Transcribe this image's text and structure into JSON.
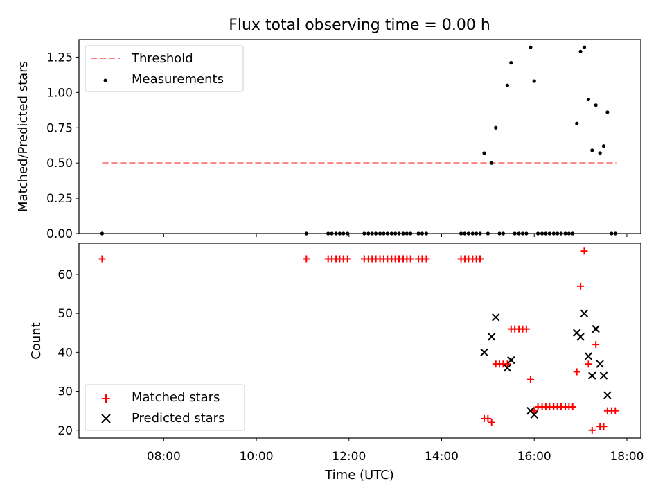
{
  "figure": {
    "title": "Flux total observing time = 0.00 h"
  },
  "chart_data": [
    {
      "type": "scatter",
      "ylabel": "Matched/Predicted stars",
      "ylim": [
        0,
        1.375
      ],
      "yticks": [
        "0.00",
        "0.25",
        "0.50",
        "0.75",
        "1.00",
        "1.25"
      ],
      "ytick_values": [
        0,
        0.25,
        0.5,
        0.75,
        1.0,
        1.25
      ],
      "legend_position": "upper-left",
      "threshold": {
        "name": "Threshold",
        "value": 0.5,
        "x_range": [
          6.67,
          17.77
        ],
        "color": "#ff7f7f"
      },
      "series": [
        {
          "name": "Measurements",
          "color": "#000000",
          "points": [
            [
              6.67,
              0.0
            ],
            [
              11.08,
              0.0
            ],
            [
              11.55,
              0.0
            ],
            [
              11.63,
              0.0
            ],
            [
              11.72,
              0.0
            ],
            [
              11.8,
              0.0
            ],
            [
              11.88,
              0.0
            ],
            [
              11.97,
              0.0
            ],
            [
              12.33,
              0.0
            ],
            [
              12.42,
              0.0
            ],
            [
              12.5,
              0.0
            ],
            [
              12.58,
              0.0
            ],
            [
              12.67,
              0.0
            ],
            [
              12.75,
              0.0
            ],
            [
              12.83,
              0.0
            ],
            [
              12.92,
              0.0
            ],
            [
              13.0,
              0.0
            ],
            [
              13.08,
              0.0
            ],
            [
              13.17,
              0.0
            ],
            [
              13.25,
              0.0
            ],
            [
              13.33,
              0.0
            ],
            [
              13.5,
              0.0
            ],
            [
              13.58,
              0.0
            ],
            [
              13.67,
              0.0
            ],
            [
              14.42,
              0.0
            ],
            [
              14.5,
              0.0
            ],
            [
              14.58,
              0.0
            ],
            [
              14.67,
              0.0
            ],
            [
              14.75,
              0.0
            ],
            [
              14.83,
              0.0
            ],
            [
              15.0,
              0.0
            ],
            [
              15.25,
              0.0
            ],
            [
              15.33,
              0.0
            ],
            [
              15.58,
              0.0
            ],
            [
              15.67,
              0.0
            ],
            [
              15.75,
              0.0
            ],
            [
              15.83,
              0.0
            ],
            [
              16.08,
              0.0
            ],
            [
              16.17,
              0.0
            ],
            [
              16.25,
              0.0
            ],
            [
              16.33,
              0.0
            ],
            [
              16.42,
              0.0
            ],
            [
              16.5,
              0.0
            ],
            [
              16.58,
              0.0
            ],
            [
              16.67,
              0.0
            ],
            [
              16.75,
              0.0
            ],
            [
              16.83,
              0.0
            ],
            [
              17.67,
              0.0
            ],
            [
              17.75,
              0.0
            ],
            [
              14.92,
              0.57
            ],
            [
              15.08,
              0.5
            ],
            [
              15.17,
              0.75
            ],
            [
              15.42,
              1.05
            ],
            [
              15.5,
              1.21
            ],
            [
              15.92,
              1.32
            ],
            [
              16.0,
              1.08
            ],
            [
              16.92,
              0.78
            ],
            [
              17.0,
              1.29
            ],
            [
              17.08,
              1.32
            ],
            [
              17.17,
              0.95
            ],
            [
              17.25,
              0.59
            ],
            [
              17.33,
              0.91
            ],
            [
              17.42,
              0.57
            ],
            [
              17.5,
              0.62
            ],
            [
              17.58,
              0.86
            ]
          ]
        }
      ]
    },
    {
      "type": "scatter",
      "xlabel": "Time (UTC)",
      "ylabel": "Count",
      "xlim": [
        6.17,
        18.3
      ],
      "ylim": [
        18,
        68
      ],
      "xticks": [
        "08:00",
        "10:00",
        "12:00",
        "14:00",
        "16:00",
        "18:00"
      ],
      "xtick_values": [
        8,
        10,
        12,
        14,
        16,
        18
      ],
      "yticks": [
        "20",
        "30",
        "40",
        "50",
        "60"
      ],
      "ytick_values": [
        20,
        30,
        40,
        50,
        60
      ],
      "legend_position": "lower-left",
      "series": [
        {
          "name": "Matched stars",
          "marker": "plus",
          "color": "#ff0000",
          "points": [
            [
              6.67,
              64
            ],
            [
              11.08,
              64
            ],
            [
              11.55,
              64
            ],
            [
              11.63,
              64
            ],
            [
              11.72,
              64
            ],
            [
              11.8,
              64
            ],
            [
              11.88,
              64
            ],
            [
              11.97,
              64
            ],
            [
              12.33,
              64
            ],
            [
              12.42,
              64
            ],
            [
              12.5,
              64
            ],
            [
              12.58,
              64
            ],
            [
              12.67,
              64
            ],
            [
              12.75,
              64
            ],
            [
              12.83,
              64
            ],
            [
              12.92,
              64
            ],
            [
              13.0,
              64
            ],
            [
              13.08,
              64
            ],
            [
              13.17,
              64
            ],
            [
              13.25,
              64
            ],
            [
              13.33,
              64
            ],
            [
              13.5,
              64
            ],
            [
              13.58,
              64
            ],
            [
              13.67,
              64
            ],
            [
              14.42,
              64
            ],
            [
              14.5,
              64
            ],
            [
              14.58,
              64
            ],
            [
              14.67,
              64
            ],
            [
              14.75,
              64
            ],
            [
              14.83,
              64
            ],
            [
              14.92,
              23
            ],
            [
              15.0,
              23
            ],
            [
              15.08,
              22
            ],
            [
              15.17,
              37
            ],
            [
              15.25,
              37
            ],
            [
              15.33,
              37
            ],
            [
              15.42,
              37
            ],
            [
              15.5,
              46
            ],
            [
              15.58,
              46
            ],
            [
              15.67,
              46
            ],
            [
              15.75,
              46
            ],
            [
              15.83,
              46
            ],
            [
              15.92,
              33
            ],
            [
              16.0,
              25
            ],
            [
              16.08,
              26
            ],
            [
              16.17,
              26
            ],
            [
              16.25,
              26
            ],
            [
              16.33,
              26
            ],
            [
              16.42,
              26
            ],
            [
              16.5,
              26
            ],
            [
              16.58,
              26
            ],
            [
              16.67,
              26
            ],
            [
              16.75,
              26
            ],
            [
              16.83,
              26
            ],
            [
              16.92,
              35
            ],
            [
              17.0,
              57
            ],
            [
              17.08,
              66
            ],
            [
              17.17,
              37
            ],
            [
              17.25,
              20
            ],
            [
              17.33,
              42
            ],
            [
              17.42,
              21
            ],
            [
              17.5,
              21
            ],
            [
              17.58,
              25
            ],
            [
              17.67,
              25
            ],
            [
              17.75,
              25
            ]
          ]
        },
        {
          "name": "Predicted stars",
          "marker": "x",
          "color": "#000000",
          "points": [
            [
              14.92,
              40
            ],
            [
              15.08,
              44
            ],
            [
              15.17,
              49
            ],
            [
              15.42,
              36
            ],
            [
              15.5,
              38
            ],
            [
              15.92,
              25
            ],
            [
              16.0,
              24
            ],
            [
              16.92,
              45
            ],
            [
              17.0,
              44
            ],
            [
              17.08,
              50
            ],
            [
              17.17,
              39
            ],
            [
              17.25,
              34
            ],
            [
              17.33,
              46
            ],
            [
              17.42,
              37
            ],
            [
              17.5,
              34
            ],
            [
              17.58,
              29
            ]
          ]
        }
      ]
    }
  ]
}
